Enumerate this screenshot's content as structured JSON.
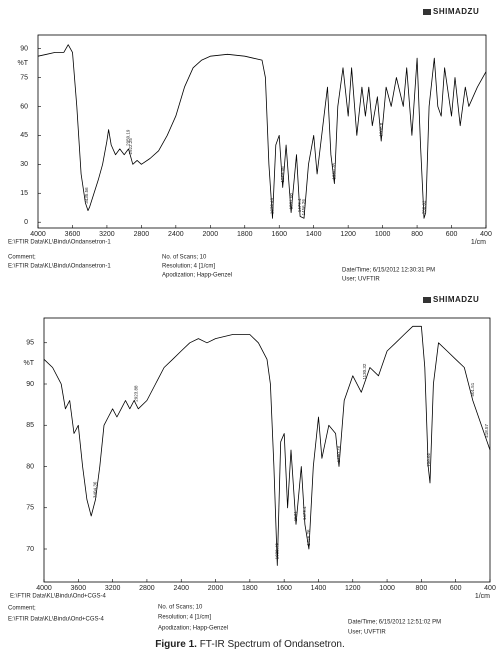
{
  "chart_data": [
    {
      "type": "line",
      "brand": "SHIMADZU",
      "x_label": "1/cm",
      "y_label": "%T",
      "color": "#000000",
      "grid": false,
      "xlim": [
        4000,
        400
      ],
      "xticks": [
        4000,
        3600,
        3200,
        2800,
        2400,
        2000,
        1800,
        1600,
        1400,
        1200,
        1000,
        800,
        600,
        400
      ],
      "ylim": [
        -3,
        97
      ],
      "yticks": [
        0,
        15,
        30,
        45,
        60,
        75,
        90
      ],
      "x": [
        4000,
        3900,
        3800,
        3700,
        3650,
        3600,
        3550,
        3500,
        3450,
        3420,
        3400,
        3350,
        3300,
        3250,
        3200,
        3180,
        3150,
        3100,
        3050,
        3000,
        2950,
        2900,
        2850,
        2800,
        2700,
        2600,
        2500,
        2400,
        2300,
        2200,
        2100,
        2000,
        1900,
        1800,
        1750,
        1700,
        1680,
        1660,
        1639,
        1620,
        1600,
        1580,
        1560,
        1531,
        1500,
        1479,
        1456,
        1430,
        1400,
        1380,
        1340,
        1320,
        1300,
        1280,
        1260,
        1230,
        1200,
        1180,
        1150,
        1120,
        1100,
        1080,
        1060,
        1030,
        1008,
        980,
        950,
        920,
        880,
        860,
        830,
        800,
        780,
        760,
        750,
        730,
        700,
        680,
        660,
        640,
        600,
        580,
        550,
        520,
        500,
        450,
        400
      ],
      "values": [
        86,
        87,
        88,
        88,
        92,
        88,
        60,
        25,
        10,
        6,
        8,
        15,
        22,
        30,
        42,
        48,
        40,
        35,
        38,
        35,
        38,
        30,
        32,
        30,
        33,
        37,
        45,
        55,
        70,
        80,
        84,
        86,
        87,
        86,
        85,
        84,
        75,
        30,
        2,
        40,
        45,
        18,
        40,
        5,
        35,
        3,
        2,
        30,
        45,
        25,
        55,
        70,
        35,
        20,
        60,
        80,
        55,
        80,
        45,
        70,
        55,
        70,
        50,
        65,
        42,
        70,
        60,
        75,
        60,
        80,
        45,
        85,
        40,
        2,
        5,
        60,
        85,
        60,
        55,
        80,
        55,
        75,
        50,
        70,
        60,
        70,
        78
      ],
      "peaks": [
        3435.56,
        2950.19,
        2922.25,
        1639.49,
        1579.06,
        1531.08,
        1479.4,
        1456.26,
        1280.78,
        1008.8,
        758.02
      ],
      "file": "E:\\FTIR Data\\KL\\Bindu\\Ondansetron-1",
      "info": {
        "comment_label": "Comment;",
        "comment": "E:\\FTIR Data\\KL\\Bindu\\Ondansetron-1",
        "scans": "No. of Scans; 10",
        "resolution": "Resolution;   4 [1/cm]",
        "apodization": "Apodization;   Happ-Genzel",
        "date": "Date/Time; 6/15/2012 12:30:31 PM",
        "user": "User;        UVFTIR"
      }
    },
    {
      "type": "line",
      "brand": "SHIMADZU",
      "x_label": "1/cm",
      "y_label": "%T",
      "color": "#000000",
      "grid": false,
      "xlim": [
        4000,
        400
      ],
      "xticks": [
        4000,
        3600,
        3200,
        2800,
        2400,
        2000,
        1800,
        1600,
        1400,
        1200,
        1000,
        800,
        600,
        400
      ],
      "ylim": [
        66,
        98
      ],
      "yticks": [
        70,
        75,
        80,
        85,
        90,
        95
      ],
      "x": [
        4000,
        3900,
        3800,
        3750,
        3700,
        3650,
        3600,
        3550,
        3500,
        3450,
        3400,
        3350,
        3300,
        3250,
        3200,
        3150,
        3100,
        3050,
        3000,
        2950,
        2900,
        2800,
        2700,
        2600,
        2500,
        2400,
        2300,
        2200,
        2100,
        2000,
        1900,
        1800,
        1750,
        1700,
        1680,
        1660,
        1640,
        1620,
        1600,
        1580,
        1560,
        1531,
        1500,
        1479,
        1456,
        1430,
        1400,
        1380,
        1340,
        1300,
        1280,
        1250,
        1200,
        1150,
        1100,
        1050,
        1000,
        950,
        900,
        850,
        800,
        780,
        760,
        750,
        730,
        700,
        650,
        600,
        550,
        500,
        450,
        400
      ],
      "values": [
        93,
        92,
        90,
        87,
        88,
        84,
        85,
        80,
        76,
        74,
        76,
        80,
        85,
        86,
        87,
        86,
        87,
        88,
        87,
        88,
        87,
        88,
        90,
        92,
        93,
        94,
        95,
        95.5,
        95,
        95.5,
        96,
        96,
        95,
        93,
        90,
        80,
        68,
        83,
        84,
        75,
        82,
        73,
        80,
        73,
        70,
        80,
        86,
        81,
        85,
        84,
        80,
        88,
        91,
        89,
        92,
        91,
        94,
        95,
        96,
        97,
        97,
        92,
        80,
        78,
        90,
        95,
        94,
        93,
        92,
        88,
        85,
        82
      ],
      "peaks": [
        3404.36,
        2923.88,
        1639.49,
        1531.0,
        1479.4,
        1456.26,
        1280.78,
        1130.32,
        758.02,
        501.51,
        418.57
      ],
      "file": "E:\\FTIR Data\\KL\\Bindu\\Ond+CGS-4",
      "info": {
        "comment_label": "Comment;",
        "comment": "E:\\FTIR Data\\KL\\Bindu\\Ond+CGS-4",
        "scans": "No. of Scans; 10",
        "resolution": "Resolution;   4 [1/cm]",
        "apodization": "Apodization;   Happ-Genzel",
        "date": "Date/Time; 6/15/2012 12:51:02 PM",
        "user": "User;        UVFTIR"
      }
    }
  ],
  "caption": {
    "label": "Figure 1.",
    "text": "FT-IR Spectrum of Ondansetron."
  }
}
